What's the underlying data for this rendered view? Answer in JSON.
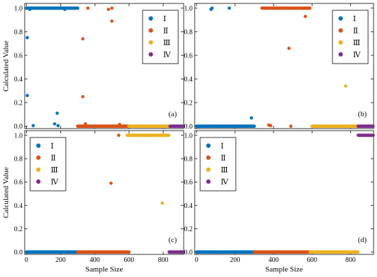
{
  "figure": {
    "xlabel": "Sample Size",
    "ylabel": "Calculated Value"
  },
  "chart_data": [
    {
      "type": "scatter",
      "panel_label": "(a)",
      "xlabel": "",
      "ylabel": "Calculated Value",
      "xlim": [
        -10,
        920
      ],
      "ylim": [
        -0.02,
        1.04
      ],
      "xticks": [
        0,
        200,
        400,
        600,
        800
      ],
      "yticks": [
        0.0,
        0.2,
        0.4,
        0.6,
        0.8,
        1.0
      ],
      "xtick_labels": [],
      "ytick_labels": [
        "0.0",
        "0.2",
        "0.4",
        "0.6",
        "0.8",
        "1.0"
      ],
      "legend": {
        "position": "top-right",
        "entries": [
          "Ⅰ",
          "Ⅱ",
          "Ⅲ",
          "Ⅳ"
        ]
      },
      "series": [
        {
          "name": "Ⅰ",
          "color": "#0072BD",
          "band": {
            "x_start": 0,
            "x_end": 300,
            "y": 1.0
          },
          "outliers": [
            [
              5,
              0.75
            ],
            [
              5,
              0.26
            ],
            [
              20,
              0.99
            ],
            [
              40,
              0.005
            ],
            [
              165,
              0.02
            ],
            [
              180,
              0.11
            ],
            [
              185,
              0.005
            ],
            [
              225,
              0.99
            ]
          ]
        },
        {
          "name": "Ⅱ",
          "color": "#D95319",
          "band": {
            "x_start": 300,
            "x_end": 600,
            "y": 0.0
          },
          "outliers": [
            [
              330,
              0.74
            ],
            [
              330,
              0.25
            ],
            [
              345,
              0.02
            ],
            [
              360,
              1.0
            ],
            [
              480,
              0.99
            ],
            [
              500,
              0.89
            ],
            [
              500,
              1.0
            ],
            [
              545,
              0.015
            ]
          ]
        },
        {
          "name": "Ⅲ",
          "color": "#EDB120",
          "band": {
            "x_start": 600,
            "x_end": 840,
            "y": 0.0
          },
          "outliers": []
        },
        {
          "name": "Ⅳ",
          "color": "#7E2F8E",
          "band": {
            "x_start": 840,
            "x_end": 920,
            "y": 0.0
          },
          "outliers": []
        }
      ]
    },
    {
      "type": "scatter",
      "panel_label": "(b)",
      "xlabel": "",
      "ylabel": "",
      "xlim": [
        -10,
        920
      ],
      "ylim": [
        -0.02,
        1.04
      ],
      "xticks": [
        0,
        200,
        400,
        600,
        800
      ],
      "yticks": [
        0.0,
        0.2,
        0.4,
        0.6,
        0.8,
        1.0
      ],
      "xtick_labels": [],
      "ytick_labels": [
        "0.0",
        "0.2",
        "0.4",
        "0.6",
        "0.8",
        "1.0"
      ],
      "legend": {
        "position": "top-right",
        "entries": [
          "Ⅰ",
          "Ⅱ",
          "Ⅲ",
          "Ⅳ"
        ]
      },
      "series": [
        {
          "name": "Ⅰ",
          "color": "#0072BD",
          "band": {
            "x_start": 0,
            "x_end": 300,
            "y": 0.0
          },
          "outliers": [
            [
              75,
              0.99
            ],
            [
              80,
              1.0
            ],
            [
              170,
              1.0
            ],
            [
              285,
              0.07
            ]
          ]
        },
        {
          "name": "Ⅱ",
          "color": "#D95319",
          "band": {
            "x_start": 340,
            "x_end": 590,
            "y": 1.0
          },
          "outliers": [
            [
              375,
              0.01
            ],
            [
              385,
              0.005
            ],
            [
              480,
              0.66
            ],
            [
              490,
              0.0
            ],
            [
              565,
              0.93
            ]
          ]
        },
        {
          "name": "Ⅲ",
          "color": "#EDB120",
          "band": {
            "x_start": 600,
            "x_end": 840,
            "y": 0.0
          },
          "outliers": [
            [
              775,
              0.34
            ]
          ]
        },
        {
          "name": "Ⅳ",
          "color": "#7E2F8E",
          "band": {
            "x_start": 840,
            "x_end": 920,
            "y": 0.0
          },
          "outliers": []
        }
      ]
    },
    {
      "type": "scatter",
      "panel_label": "(c)",
      "xlabel": "Sample Size",
      "ylabel": "Calculated Value",
      "xlim": [
        -10,
        920
      ],
      "ylim": [
        -0.02,
        1.04
      ],
      "xticks": [
        0,
        200,
        400,
        600,
        800
      ],
      "yticks": [
        0.0,
        0.2,
        0.4,
        0.6,
        0.8,
        1.0
      ],
      "xtick_labels": [
        "0",
        "200",
        "400",
        "600",
        "800"
      ],
      "ytick_labels": [
        "0.0",
        "0.2",
        "0.4",
        "0.6",
        "0.8",
        "1.0"
      ],
      "legend": {
        "position": "top-left",
        "entries": [
          "Ⅰ",
          "Ⅱ",
          "Ⅲ",
          "Ⅳ"
        ]
      },
      "series": [
        {
          "name": "Ⅰ",
          "color": "#0072BD",
          "band": {
            "x_start": 0,
            "x_end": 300,
            "y": 0.0
          },
          "outliers": []
        },
        {
          "name": "Ⅱ",
          "color": "#D95319",
          "band": {
            "x_start": 300,
            "x_end": 600,
            "y": 0.0
          },
          "outliers": [
            [
              495,
              0.59
            ],
            [
              500,
              0.0
            ],
            [
              540,
              1.0
            ]
          ]
        },
        {
          "name": "Ⅲ",
          "color": "#EDB120",
          "band": {
            "x_start": 590,
            "x_end": 835,
            "y": 1.0
          },
          "outliers": [
            [
              795,
              0.42
            ]
          ]
        },
        {
          "name": "Ⅳ",
          "color": "#7E2F8E",
          "band": {
            "x_start": 835,
            "x_end": 920,
            "y": 0.0
          },
          "outliers": []
        }
      ]
    },
    {
      "type": "scatter",
      "panel_label": "(d)",
      "xlabel": "Sample Size",
      "ylabel": "",
      "xlim": [
        -10,
        920
      ],
      "ylim": [
        -0.02,
        1.04
      ],
      "xticks": [
        0,
        200,
        400,
        600,
        800
      ],
      "yticks": [
        0.0,
        0.2,
        0.4,
        0.6,
        0.8,
        1.0
      ],
      "xtick_labels": [
        "0",
        "200",
        "400",
        "600",
        "800"
      ],
      "ytick_labels": [
        "0.0",
        "0.2",
        "0.4",
        "0.6",
        "0.8",
        "1.0"
      ],
      "legend": {
        "position": "top-left",
        "entries": [
          "Ⅰ",
          "Ⅱ",
          "Ⅲ",
          "Ⅳ"
        ]
      },
      "series": [
        {
          "name": "Ⅰ",
          "color": "#0072BD",
          "band": {
            "x_start": 0,
            "x_end": 300,
            "y": 0.0
          },
          "outliers": []
        },
        {
          "name": "Ⅱ",
          "color": "#D95319",
          "band": {
            "x_start": 300,
            "x_end": 590,
            "y": 0.0
          },
          "outliers": []
        },
        {
          "name": "Ⅲ",
          "color": "#EDB120",
          "band": {
            "x_start": 590,
            "x_end": 840,
            "y": 0.0
          },
          "outliers": []
        },
        {
          "name": "Ⅳ",
          "color": "#7E2F8E",
          "band": {
            "x_start": 840,
            "x_end": 920,
            "y": 1.0
          },
          "outliers": []
        }
      ]
    }
  ]
}
